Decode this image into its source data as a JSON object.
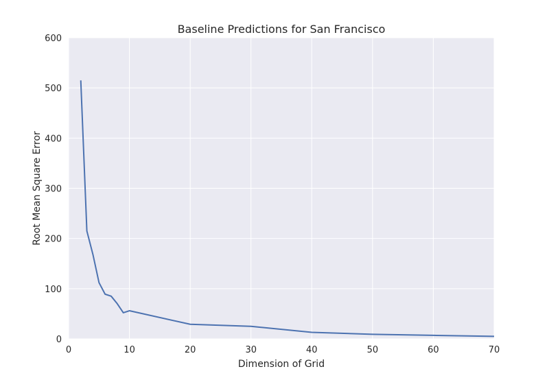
{
  "chart_data": {
    "type": "line",
    "title": "Baseline Predictions for San Francisco",
    "xlabel": "Dimension of Grid",
    "ylabel": "Root Mean Square Error",
    "xlim": [
      0,
      70
    ],
    "ylim": [
      0,
      600
    ],
    "x_ticks": [
      0,
      10,
      20,
      30,
      40,
      50,
      60,
      70
    ],
    "y_ticks": [
      0,
      100,
      200,
      300,
      400,
      500,
      600
    ],
    "grid": true,
    "legend": "none",
    "colors": {
      "plot_background": "#eaeaf2",
      "grid": "#ffffff",
      "line": "#4c72b0",
      "text": "#262626"
    },
    "series": [
      {
        "x": [
          2,
          3,
          4,
          5,
          6,
          7,
          8,
          9,
          10,
          20,
          30,
          40,
          50,
          60,
          70
        ],
        "y": [
          515,
          215,
          168,
          112,
          89,
          85,
          70,
          52,
          56,
          29,
          25,
          13,
          9,
          7,
          5
        ]
      }
    ]
  }
}
